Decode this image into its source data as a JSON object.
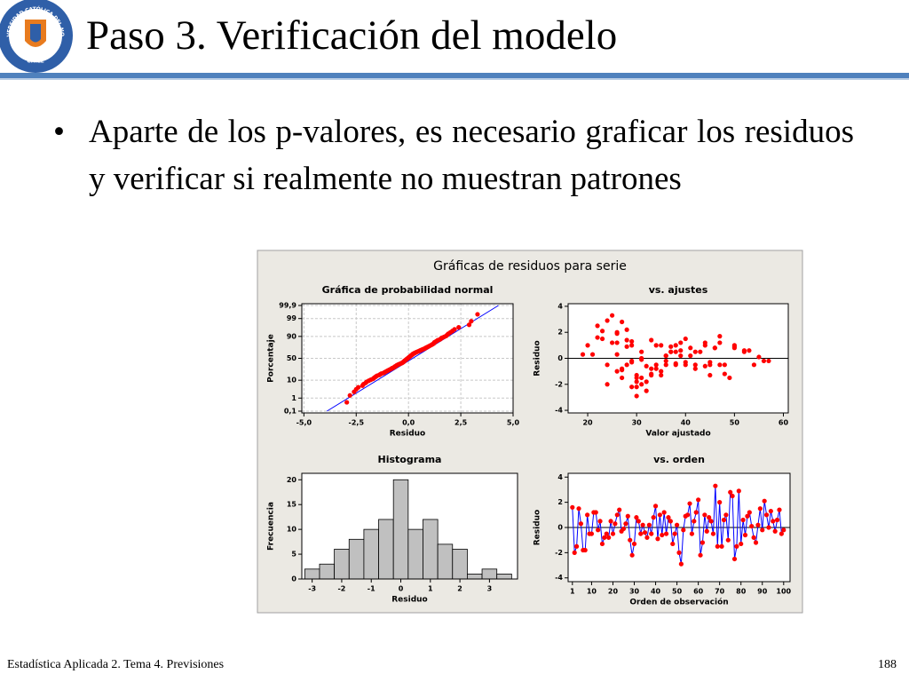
{
  "slide": {
    "title": "Paso 3. Verificación del modelo",
    "bullet": "Aparte de los p-valores, es necesario graficar los residuos y verificar si realmente no muestran patrones",
    "footer": "Estadística Aplicada 2. Tema 4. Previsiones",
    "page_number": "188",
    "logo": {
      "top": "UNIVERSIDAD CATÓLICA DEL NORTE",
      "bottom": "CHILE"
    }
  },
  "figure_title": "Gráficas de residuos para serie",
  "chart_data": [
    {
      "type": "scatter",
      "title": "Gráfica de probabilidad normal",
      "xlabel": "Residuo",
      "ylabel": "Porcentaje",
      "yscale": "probability",
      "grid": true,
      "color": "#ff0000",
      "xlim": [
        -5.1,
        5.0
      ],
      "xticks": [
        {
          "value": -5,
          "label": "-5,0"
        },
        {
          "value": -2.5,
          "label": "-2,5"
        },
        {
          "value": 0,
          "label": "0,0"
        },
        {
          "value": 2.5,
          "label": "2,5"
        },
        {
          "value": 5,
          "label": "5,0"
        }
      ],
      "ylim": [
        0.07,
        99.93
      ],
      "yticks": [
        {
          "value": 0.1,
          "label": "0,1"
        },
        1,
        10,
        50,
        90,
        99,
        {
          "value": 99.9,
          "label": "99,9"
        }
      ],
      "fit_line": {
        "color": "#0000ff",
        "x": [
          -3.9,
          4.3
        ],
        "y": [
          0.1,
          99.9
        ]
      },
      "x": [
        -2.95,
        -2.8,
        -2.6,
        -2.5,
        -2.4,
        -2.2,
        -2.15,
        -2.05,
        -2.0,
        -1.9,
        -1.8,
        -1.7,
        -1.65,
        -1.6,
        -1.55,
        -1.5,
        -1.4,
        -1.35,
        -1.3,
        -1.2,
        -1.15,
        -1.1,
        -1.05,
        -1.0,
        -0.95,
        -0.9,
        -0.85,
        -0.8,
        -0.78,
        -0.7,
        -0.68,
        -0.65,
        -0.6,
        -0.58,
        -0.55,
        -0.5,
        -0.45,
        -0.4,
        -0.35,
        -0.3,
        -0.28,
        -0.24,
        -0.22,
        -0.2,
        -0.18,
        -0.15,
        -0.12,
        -0.1,
        -0.08,
        -0.05,
        -0.02,
        0,
        0.02,
        0.05,
        0.08,
        0.1,
        0.12,
        0.15,
        0.18,
        0.2,
        0.22,
        0.28,
        0.3,
        0.35,
        0.4,
        0.45,
        0.5,
        0.55,
        0.6,
        0.65,
        0.7,
        0.78,
        0.8,
        0.85,
        0.9,
        0.95,
        1.0,
        1.05,
        1.1,
        1.15,
        1.2,
        1.22,
        1.24,
        1.3,
        1.35,
        1.4,
        1.5,
        1.55,
        1.6,
        1.7,
        1.8,
        1.85,
        1.9,
        2.0,
        2.1,
        2.2,
        2.4,
        2.9,
        3.0,
        3.3
      ],
      "y": [
        0.5,
        1.5,
        2.5,
        3.5,
        4.5,
        5.5,
        6.5,
        7.5,
        8.5,
        9.5,
        10.5,
        11.5,
        12.5,
        13.5,
        14.5,
        15.5,
        16.5,
        17.5,
        18.5,
        19.5,
        20.5,
        21.5,
        22.5,
        23.5,
        24.5,
        25.5,
        26.5,
        27.5,
        28.5,
        29.5,
        30.5,
        31.5,
        32.5,
        33.5,
        34.5,
        35.5,
        36.5,
        37.5,
        38.5,
        39.5,
        40.5,
        41.5,
        42.5,
        43.5,
        44.5,
        45.5,
        46.5,
        47.5,
        48.5,
        49.5,
        50.5,
        51.5,
        52.5,
        53.5,
        54.5,
        55.5,
        56.5,
        57.5,
        58.5,
        59.5,
        60.5,
        61.5,
        62.5,
        63.5,
        64.5,
        65.5,
        66.5,
        67.5,
        68.5,
        69.5,
        70.5,
        71.5,
        72.5,
        73.5,
        74.5,
        75.5,
        76.5,
        77.5,
        78.5,
        79.5,
        80.5,
        81.5,
        82.5,
        83.5,
        84.5,
        85.5,
        86.5,
        87.5,
        88.5,
        89.5,
        90.5,
        91.5,
        92.5,
        93.5,
        94.5,
        95.5,
        96.5,
        97.5,
        98.5,
        99.5
      ]
    },
    {
      "type": "scatter",
      "title": "vs. ajustes",
      "xlabel": "Valor ajustado",
      "ylabel": "Residuo",
      "color": "#ff0000",
      "xlim": [
        16,
        61
      ],
      "xticks": [
        20,
        30,
        40,
        50,
        60
      ],
      "ylim": [
        -4.2,
        4.2
      ],
      "yticks": [
        -4,
        -2,
        0,
        2,
        4
      ],
      "hline": {
        "value": 0,
        "color": "#000000"
      },
      "x": [
        22,
        24,
        27,
        23,
        19,
        30,
        32,
        20,
        28,
        36,
        25,
        26,
        29,
        31,
        33,
        27,
        24,
        34,
        38,
        40,
        21,
        35,
        28,
        29,
        31,
        26,
        37,
        26,
        30,
        30,
        41,
        43,
        45,
        36,
        38,
        33,
        39,
        42,
        46,
        47,
        27,
        29,
        32,
        44,
        48,
        50,
        52,
        35,
        38,
        41,
        31,
        30,
        36,
        28,
        44,
        26,
        34,
        37,
        39,
        28,
        29,
        33,
        38,
        40,
        46,
        42,
        47,
        25,
        30,
        26,
        49,
        53,
        50,
        35,
        27,
        22,
        32,
        31,
        24,
        45,
        39,
        44,
        50,
        47,
        55,
        42,
        48,
        36,
        40,
        57,
        23,
        34,
        31,
        29,
        37,
        45,
        52,
        33,
        54,
        56
      ],
      "y": [
        1.6,
        -2.0,
        -1.5,
        1.5,
        0.3,
        -1.8,
        -1.8,
        1.0,
        -0.5,
        -0.5,
        1.2,
        1.2,
        -0.2,
        0.5,
        -1.3,
        -0.8,
        -0.5,
        -0.8,
        0.5,
        -0.5,
        0.3,
        1.0,
        1.4,
        -0.3,
        -0.1,
        0.3,
        0.9,
        -1.0,
        -2.2,
        -1.3,
        0.8,
        0.5,
        -0.5,
        0.2,
        -0.4,
        -0.8,
        0.2,
        -0.5,
        0.8,
        1.7,
        -0.9,
        1.0,
        -0.6,
        1.2,
        -0.5,
        0.8,
        0.5,
        -1.3,
        -0.5,
        0.2,
        -2.0,
        -2.9,
        -0.2,
        0.9,
        1.0,
        1.9,
        -0.5,
        0.5,
        1.2,
        2.2,
        -2.2,
        -1.2,
        1.0,
        -0.3,
        0.8,
        0.5,
        -0.5,
        3.3,
        -1.5,
        2.0,
        -1.5,
        0.6,
        1.0,
        -1.0,
        2.8,
        2.5,
        -2.5,
        -1.5,
        2.9,
        -1.3,
        0.6,
        -0.6,
        0.9,
        1.2,
        0.1,
        -0.8,
        -1.2,
        0.2,
        1.5,
        -0.2,
        2.1,
        1.0,
        0.0,
        1.3,
        0.5,
        -0.3,
        0.6,
        1.4,
        -0.5,
        -0.2
      ]
    },
    {
      "type": "histogram",
      "title": "Histograma",
      "xlabel": "Residuo",
      "ylabel": "Frecuencia",
      "color": "#c0c0c0",
      "xlim": [
        -3.35,
        3.95
      ],
      "xticks": [
        -3,
        -2,
        -1,
        0,
        1,
        2,
        3
      ],
      "ylim": [
        0,
        21.3
      ],
      "yticks": [
        0,
        5,
        10,
        15,
        20
      ],
      "bins": [
        -3.25,
        -2.75,
        -2.25,
        -1.75,
        -1.25,
        -0.75,
        -0.25,
        0.25,
        0.75,
        1.25,
        1.75,
        2.25,
        2.75,
        3.25,
        3.75
      ],
      "values": [
        2,
        3,
        6,
        8,
        10,
        12,
        20,
        10,
        12,
        7,
        6,
        1,
        2,
        1
      ]
    },
    {
      "type": "line",
      "title": "vs. orden",
      "xlabel": "Orden de observación",
      "ylabel": "Residuo",
      "color": "#0000ff",
      "marker_color": "#ff0000",
      "xlim": [
        -1,
        103
      ],
      "xticks": [
        1,
        10,
        20,
        30,
        40,
        50,
        60,
        70,
        80,
        90,
        100
      ],
      "ylim": [
        -4.3,
        4.3
      ],
      "yticks": [
        -4,
        -2,
        0,
        2,
        4
      ],
      "hline": {
        "value": 0,
        "color": "#000000"
      },
      "x": [
        1,
        2,
        3,
        4,
        5,
        6,
        7,
        8,
        9,
        10,
        11,
        12,
        13,
        14,
        15,
        16,
        17,
        18,
        19,
        20,
        21,
        22,
        23,
        24,
        25,
        26,
        27,
        28,
        29,
        30,
        31,
        32,
        33,
        34,
        35,
        36,
        37,
        38,
        39,
        40,
        41,
        42,
        43,
        44,
        45,
        46,
        47,
        48,
        49,
        50,
        51,
        52,
        53,
        54,
        55,
        56,
        57,
        58,
        59,
        60,
        61,
        62,
        63,
        64,
        65,
        66,
        67,
        68,
        69,
        70,
        71,
        72,
        73,
        74,
        75,
        76,
        77,
        78,
        79,
        80,
        81,
        82,
        83,
        84,
        85,
        86,
        87,
        88,
        89,
        90,
        91,
        92,
        93,
        94,
        95,
        96,
        97,
        98,
        99,
        100
      ],
      "y": [
        1.6,
        -2.0,
        -1.5,
        1.5,
        0.3,
        -1.8,
        -1.8,
        1.0,
        -0.5,
        -0.5,
        1.2,
        1.2,
        -0.2,
        0.5,
        -1.3,
        -0.8,
        -0.5,
        -0.8,
        0.5,
        -0.5,
        0.3,
        1.0,
        1.4,
        -0.3,
        -0.1,
        0.3,
        0.9,
        -1.0,
        -2.2,
        -1.3,
        0.8,
        0.5,
        -0.5,
        0.2,
        -0.4,
        -0.8,
        0.2,
        -0.5,
        0.8,
        1.7,
        -0.9,
        1.0,
        -0.6,
        1.2,
        -0.5,
        0.8,
        0.5,
        -1.3,
        -0.5,
        0.2,
        -2.0,
        -2.9,
        -0.2,
        0.9,
        1.0,
        1.9,
        -0.5,
        0.5,
        1.2,
        2.2,
        -2.2,
        -1.2,
        1.0,
        -0.3,
        0.8,
        0.5,
        -0.5,
        3.3,
        -1.5,
        2.0,
        -1.5,
        0.6,
        1.0,
        -1.0,
        2.8,
        2.5,
        -2.5,
        -1.5,
        2.9,
        -1.3,
        0.6,
        -0.6,
        0.9,
        1.2,
        0.1,
        -0.8,
        -1.2,
        0.2,
        1.5,
        -0.2,
        2.1,
        1.0,
        0.0,
        1.3,
        0.5,
        -0.3,
        0.6,
        1.4,
        -0.5,
        -0.2
      ]
    }
  ]
}
